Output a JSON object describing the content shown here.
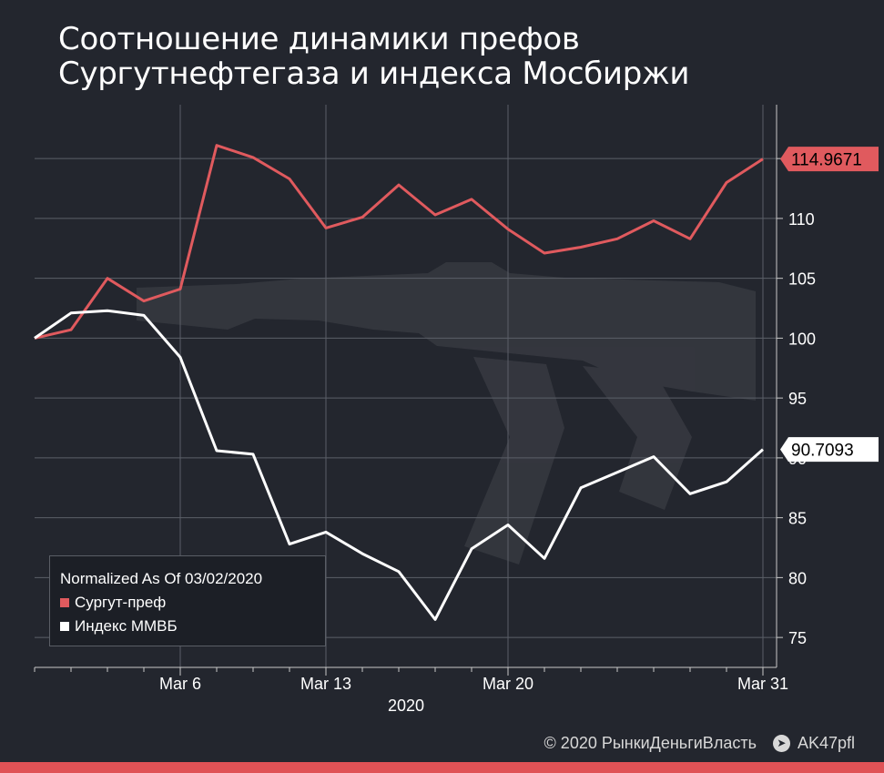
{
  "title": {
    "line1": "Соотношение динамики префов",
    "line2": "Сургутнефтегаза и индекса Мосбиржи"
  },
  "legend": {
    "heading": "Normalized As Of 03/02/2020",
    "items": [
      {
        "label": "Сургут-преф",
        "color": "#e05a5e"
      },
      {
        "label": "Индекс ММВБ",
        "color": "#ffffff"
      }
    ]
  },
  "footer": {
    "copyright": "© 2020  РынкиДеньгиВласть",
    "telegram_icon": "telegram-icon",
    "channel": "AK47pfl"
  },
  "chart_data": {
    "type": "line",
    "x": [
      "2020-03-02",
      "2020-03-03",
      "2020-03-04",
      "2020-03-05",
      "2020-03-06",
      "2020-03-10",
      "2020-03-11",
      "2020-03-12",
      "2020-03-13",
      "2020-03-16",
      "2020-03-17",
      "2020-03-18",
      "2020-03-19",
      "2020-03-20",
      "2020-03-23",
      "2020-03-24",
      "2020-03-25",
      "2020-03-26",
      "2020-03-27",
      "2020-03-30",
      "2020-03-31"
    ],
    "x_tick_labels": [
      "Mar 6",
      "Mar 13",
      "Mar 20",
      "Mar 31"
    ],
    "x_tick_dates": [
      "2020-03-06",
      "2020-03-13",
      "2020-03-20",
      "2020-03-31"
    ],
    "xlabel": "2020",
    "ylim": [
      72.5,
      119.5
    ],
    "y_ticks": [
      75,
      80,
      85,
      90,
      95,
      100,
      105,
      110,
      115
    ],
    "y_tick_labels": [
      "75",
      "80",
      "85",
      "90",
      "95",
      "100",
      "105",
      "110",
      ""
    ],
    "grid": true,
    "legend_position": "bottom-left",
    "series": [
      {
        "name": "Сургут-преф",
        "color": "#e05a5e",
        "values": [
          100,
          100.7,
          105,
          103.1,
          104.1,
          116.1,
          115.1,
          113.3,
          109.2,
          110.1,
          112.8,
          110.3,
          111.6,
          109.1,
          107.1,
          107.6,
          108.3,
          109.8,
          108.3,
          113.0,
          114.9671
        ],
        "last_value_label": "114.9671"
      },
      {
        "name": "Индекс ММВБ",
        "color": "#ffffff",
        "values": [
          100,
          102.1,
          102.3,
          101.9,
          98.4,
          90.6,
          90.3,
          82.8,
          83.8,
          82.0,
          80.5,
          76.5,
          82.4,
          84.4,
          81.6,
          87.5,
          88.8,
          90.1,
          87.0,
          88.0,
          90.7093
        ],
        "last_value_label": "90.7093"
      }
    ]
  }
}
